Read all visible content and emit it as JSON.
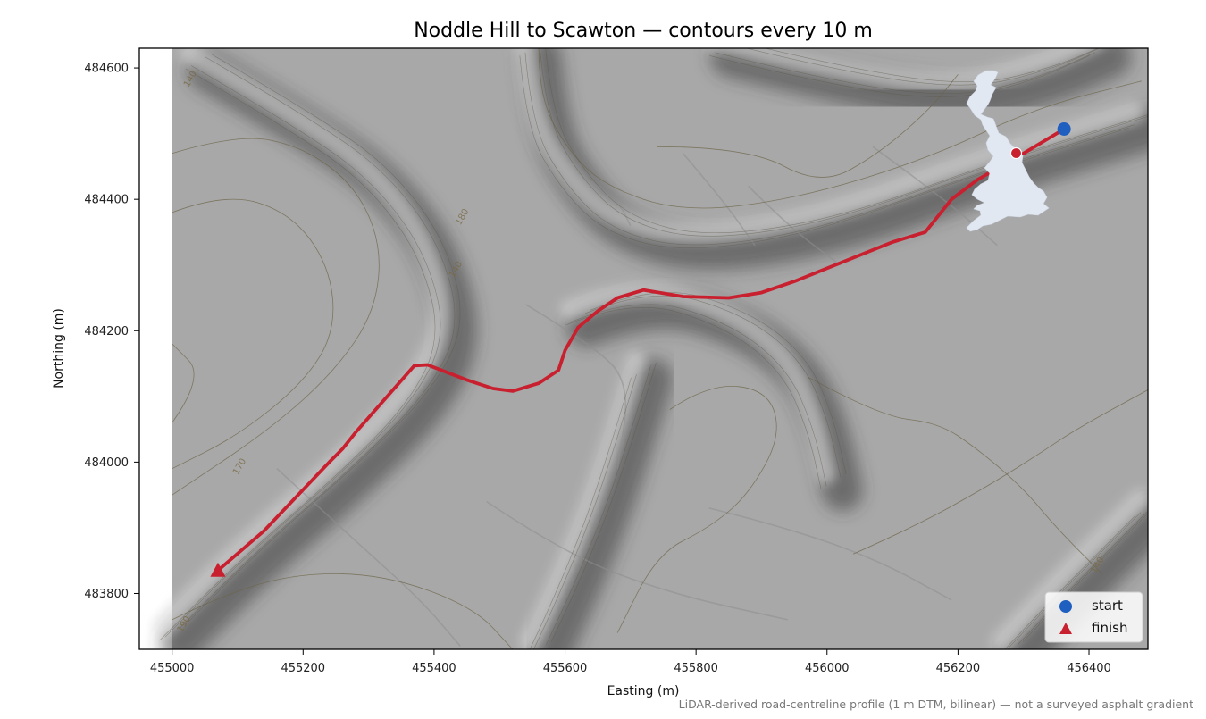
{
  "title": "Noddle Hill to Scawton — contours every 10 m",
  "x_axis": {
    "label": "Easting (m)",
    "range": [
      454950,
      456490
    ],
    "ticks": [
      {
        "value": 455000,
        "label": "455000"
      },
      {
        "value": 455200,
        "label": "455200"
      },
      {
        "value": 455400,
        "label": "455400"
      },
      {
        "value": 455600,
        "label": "455600"
      },
      {
        "value": 455800,
        "label": "455800"
      },
      {
        "value": 456000,
        "label": "456000"
      },
      {
        "value": 456200,
        "label": "456200"
      },
      {
        "value": 456400,
        "label": "456400"
      }
    ]
  },
  "y_axis": {
    "label": "Northing (m)",
    "range": [
      483715,
      484630
    ],
    "ticks": [
      {
        "value": 483800,
        "label": "483800"
      },
      {
        "value": 484000,
        "label": "484000"
      },
      {
        "value": 484200,
        "label": "484200"
      },
      {
        "value": 484400,
        "label": "484400"
      },
      {
        "value": 484600,
        "label": "484600"
      }
    ]
  },
  "raster_extent": {
    "x": [
      455000,
      456490
    ],
    "y": [
      483715,
      484630
    ]
  },
  "contour_interval_m": 10,
  "contour_labels": [
    {
      "text": "140",
      "x": 455025,
      "y": 484570
    },
    {
      "text": "180",
      "x": 455440,
      "y": 484360
    },
    {
      "text": "140",
      "x": 455430,
      "y": 484280
    },
    {
      "text": "170",
      "x": 455100,
      "y": 483980
    },
    {
      "text": "140",
      "x": 456410,
      "y": 483830
    },
    {
      "text": "190",
      "x": 455015,
      "y": 483740
    }
  ],
  "route": {
    "name": "road centreline",
    "color": "#c8202f",
    "points": [
      [
        456362,
        484507
      ],
      [
        456300,
        484470
      ],
      [
        456230,
        484430
      ],
      [
        456190,
        484400
      ],
      [
        456150,
        484350
      ],
      [
        456100,
        484335
      ],
      [
        456000,
        484295
      ],
      [
        455950,
        484275
      ],
      [
        455900,
        484258
      ],
      [
        455850,
        484250
      ],
      [
        455780,
        484252
      ],
      [
        455720,
        484262
      ],
      [
        455680,
        484250
      ],
      [
        455650,
        484230
      ],
      [
        455620,
        484205
      ],
      [
        455600,
        484170
      ],
      [
        455590,
        484140
      ],
      [
        455560,
        484120
      ],
      [
        455520,
        484108
      ],
      [
        455490,
        484112
      ],
      [
        455450,
        484125
      ],
      [
        455390,
        484148
      ],
      [
        455370,
        484147
      ],
      [
        455280,
        484045
      ],
      [
        455260,
        484020
      ],
      [
        455240,
        484000
      ],
      [
        455140,
        483895
      ],
      [
        455070,
        483835
      ]
    ]
  },
  "start_point": {
    "x": 456362,
    "y": 484507,
    "color": "#1f5fbf"
  },
  "finish_point": {
    "x": 455070,
    "y": 483835,
    "color": "#c8202f"
  },
  "legend": {
    "items": [
      {
        "label": "start",
        "marker": "circle",
        "color": "#1f5fbf"
      },
      {
        "label": "finish",
        "marker": "triangle",
        "color": "#c8202f"
      }
    ],
    "placement": "lower-right"
  },
  "inset_map": {
    "name": "great-britain-locator",
    "fill": "#e1e8f2",
    "marker_color": "#c8202f",
    "placement": "upper-right"
  },
  "footnote": "LiDAR-derived road-centreline profile (1 m DTM, bilinear) — not a surveyed asphalt gradient",
  "map_terrain": {
    "ridges": [
      [
        [
          455040,
          484610
        ],
        [
          455230,
          484500
        ],
        [
          455330,
          484420
        ],
        [
          455400,
          484320
        ],
        [
          455430,
          484200
        ],
        [
          455380,
          484100
        ],
        [
          455270,
          483990
        ],
        [
          455120,
          483860
        ],
        [
          455000,
          483740
        ]
      ],
      [
        [
          455550,
          484630
        ],
        [
          455560,
          484520
        ],
        [
          455610,
          484430
        ],
        [
          455680,
          484360
        ],
        [
          455800,
          484330
        ],
        [
          456000,
          484360
        ],
        [
          456250,
          484450
        ],
        [
          456480,
          484520
        ]
      ],
      [
        [
          455840,
          484630
        ],
        [
          456000,
          484590
        ],
        [
          456200,
          484560
        ],
        [
          456330,
          484590
        ],
        [
          456420,
          484630
        ]
      ],
      [
        [
          455620,
          484220
        ],
        [
          455720,
          484260
        ],
        [
          455860,
          484220
        ],
        [
          455950,
          484150
        ],
        [
          455990,
          484060
        ],
        [
          456010,
          483970
        ]
      ],
      [
        [
          455720,
          484140
        ],
        [
          455690,
          484040
        ],
        [
          455650,
          483920
        ],
        [
          455600,
          483800
        ],
        [
          455560,
          483715
        ]
      ],
      [
        [
          456280,
          483715
        ],
        [
          456360,
          483800
        ],
        [
          456440,
          483880
        ],
        [
          456490,
          483930
        ]
      ]
    ],
    "contour_lines": [
      [
        [
          455000,
          484470
        ],
        [
          455100,
          484500
        ],
        [
          455200,
          484480
        ],
        [
          455280,
          484420
        ],
        [
          455320,
          484330
        ],
        [
          455310,
          484230
        ],
        [
          455250,
          484140
        ],
        [
          455150,
          484050
        ],
        [
          455000,
          483950
        ]
      ],
      [
        [
          455000,
          484380
        ],
        [
          455080,
          484410
        ],
        [
          455180,
          484380
        ],
        [
          455240,
          484300
        ],
        [
          455250,
          484200
        ],
        [
          455200,
          484120
        ],
        [
          455100,
          484040
        ],
        [
          455000,
          483990
        ]
      ],
      [
        [
          455000,
          484060
        ],
        [
          455050,
          484130
        ],
        [
          455000,
          484180
        ]
      ],
      [
        [
          455560,
          484630
        ],
        [
          455560,
          484560
        ],
        [
          455600,
          484480
        ],
        [
          455660,
          484420
        ],
        [
          455780,
          484380
        ],
        [
          455950,
          484400
        ],
        [
          456150,
          484460
        ],
        [
          456320,
          484540
        ],
        [
          456480,
          484580
        ]
      ],
      [
        [
          455740,
          484480
        ],
        [
          455880,
          484480
        ],
        [
          455990,
          484420
        ],
        [
          456080,
          484470
        ],
        [
          456160,
          484540
        ],
        [
          456200,
          484590
        ]
      ],
      [
        [
          455000,
          483760
        ],
        [
          455060,
          483790
        ],
        [
          455180,
          483830
        ],
        [
          455320,
          483830
        ],
        [
          455460,
          483780
        ],
        [
          455520,
          483715
        ]
      ],
      [
        [
          455760,
          484080
        ],
        [
          455820,
          484120
        ],
        [
          455910,
          484110
        ],
        [
          455930,
          484040
        ],
        [
          455880,
          483950
        ],
        [
          455820,
          483900
        ],
        [
          455740,
          483860
        ],
        [
          455680,
          483740
        ]
      ],
      [
        [
          456040,
          483860
        ],
        [
          456130,
          483900
        ],
        [
          456240,
          483960
        ],
        [
          456320,
          484010
        ],
        [
          456380,
          484050
        ],
        [
          456490,
          484110
        ]
      ],
      [
        [
          455970,
          484130
        ],
        [
          456080,
          484070
        ],
        [
          456170,
          484060
        ],
        [
          456230,
          484020
        ],
        [
          456300,
          483960
        ],
        [
          456350,
          483900
        ],
        [
          456420,
          483830
        ]
      ]
    ],
    "field_boundaries": [
      [
        [
          455540,
          484240
        ],
        [
          455640,
          484180
        ],
        [
          455700,
          484120
        ],
        [
          455680,
          483990
        ]
      ],
      [
        [
          455780,
          484470
        ],
        [
          455840,
          484400
        ],
        [
          455890,
          484330
        ]
      ],
      [
        [
          455880,
          484420
        ],
        [
          455940,
          484360
        ],
        [
          456020,
          484300
        ]
      ],
      [
        [
          455620,
          484440
        ],
        [
          455680,
          484400
        ],
        [
          455700,
          484360
        ]
      ],
      [
        [
          455160,
          483990
        ],
        [
          455280,
          483880
        ],
        [
          455380,
          483790
        ],
        [
          455440,
          483720
        ]
      ],
      [
        [
          455480,
          483940
        ],
        [
          455600,
          483860
        ],
        [
          455760,
          483800
        ],
        [
          455940,
          483760
        ]
      ],
      [
        [
          455820,
          483930
        ],
        [
          455940,
          483900
        ],
        [
          456080,
          483850
        ],
        [
          456190,
          483790
        ]
      ],
      [
        [
          456070,
          484480
        ],
        [
          456180,
          484400
        ],
        [
          456260,
          484330
        ]
      ]
    ]
  }
}
